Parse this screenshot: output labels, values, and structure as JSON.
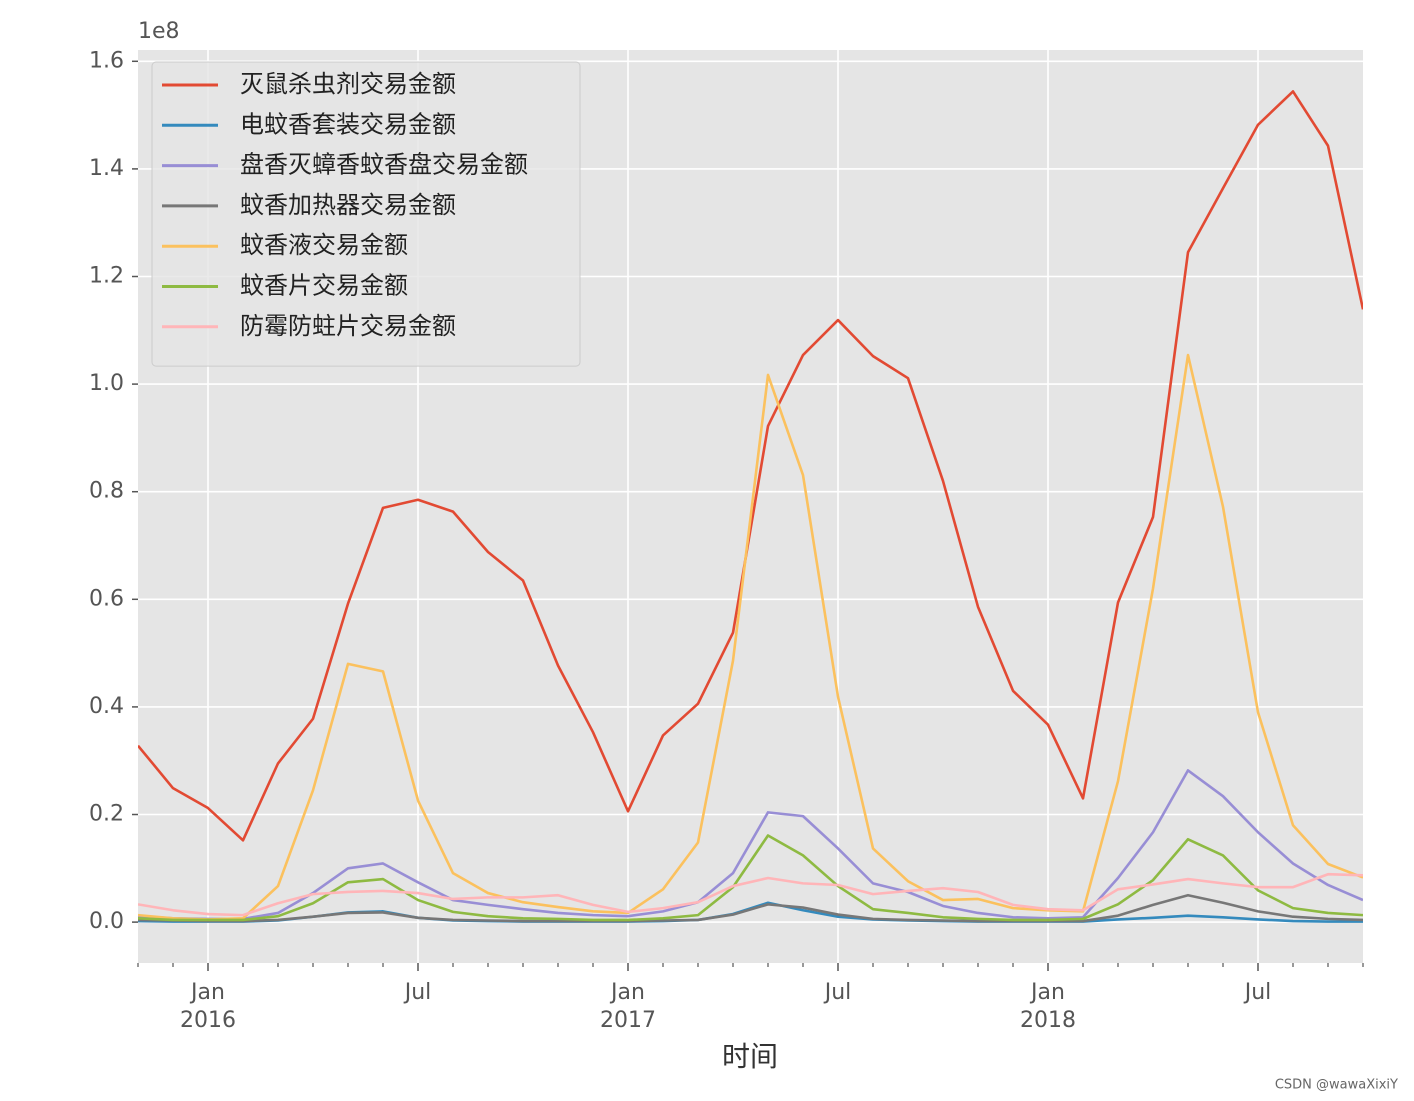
{
  "chart_data": {
    "type": "line",
    "xlabel": "时间",
    "offset_label": "1e8",
    "watermark": "CSDN @wawaXixiY",
    "x": [
      "2015-11",
      "2015-12",
      "2016-01",
      "2016-02",
      "2016-03",
      "2016-04",
      "2016-05",
      "2016-06",
      "2016-07",
      "2016-08",
      "2016-09",
      "2016-10",
      "2016-11",
      "2016-12",
      "2017-01",
      "2017-02",
      "2017-03",
      "2017-04",
      "2017-05",
      "2017-06",
      "2017-07",
      "2017-08",
      "2017-09",
      "2017-10",
      "2017-11",
      "2017-12",
      "2018-01",
      "2018-02",
      "2018-03",
      "2018-04",
      "2018-05",
      "2018-06",
      "2018-07",
      "2018-08",
      "2018-09",
      "2018-10"
    ],
    "xlim": [
      "2015-11",
      "2018-10"
    ],
    "xticks": [
      {
        "value": "2016-01",
        "label": "Jan",
        "sublabel": "2016"
      },
      {
        "value": "2016-07",
        "label": "Jul"
      },
      {
        "value": "2017-01",
        "label": "Jan",
        "sublabel": "2017"
      },
      {
        "value": "2017-07",
        "label": "Jul"
      },
      {
        "value": "2018-01",
        "label": "Jan",
        "sublabel": "2018"
      },
      {
        "value": "2018-07",
        "label": "Jul"
      }
    ],
    "xminor_ticks": [
      "2015-11",
      "2015-12",
      "2016-02",
      "2016-03",
      "2016-04",
      "2016-05",
      "2016-06",
      "2016-08",
      "2016-09",
      "2016-10",
      "2016-11",
      "2016-12",
      "2017-02",
      "2017-03",
      "2017-04",
      "2017-05",
      "2017-06",
      "2017-08",
      "2017-09",
      "2017-10",
      "2017-11",
      "2017-12",
      "2018-02",
      "2018-03",
      "2018-04",
      "2018-05",
      "2018-06",
      "2018-08",
      "2018-09",
      "2018-10"
    ],
    "ylim": [
      -0.076,
      1.621
    ],
    "yticks": [
      {
        "value": 0,
        "label": "0.0"
      },
      {
        "value": 0.2,
        "label": "0.2"
      },
      {
        "value": 0.4,
        "label": "0.4"
      },
      {
        "value": 0.6,
        "label": "0.6"
      },
      {
        "value": 0.8,
        "label": "0.8"
      },
      {
        "value": 1,
        "label": "1.0"
      },
      {
        "value": 1.2,
        "label": "1.2"
      },
      {
        "value": 1.4,
        "label": "1.4"
      },
      {
        "value": 1.6,
        "label": "1.6"
      }
    ],
    "grid": true,
    "legend": "upper left",
    "background": "#e5e5e5",
    "series": [
      {
        "name": "灭鼠杀虫剂交易金额",
        "color": "#e24a33",
        "values": [
          0.328,
          0.249,
          0.212,
          0.152,
          0.295,
          0.378,
          0.592,
          0.77,
          0.785,
          0.763,
          0.688,
          0.635,
          0.477,
          0.353,
          0.206,
          0.347,
          0.406,
          0.538,
          0.922,
          1.054,
          1.119,
          1.052,
          1.011,
          0.82,
          0.586,
          0.43,
          0.367,
          0.23,
          0.594,
          0.753,
          1.245,
          1.364,
          1.482,
          1.544,
          1.443,
          1.139
        ]
      },
      {
        "name": "电蚊香套装交易金额",
        "color": "#348abd",
        "values": [
          0.002,
          0.001,
          0.001,
          0.001,
          0.003,
          0.01,
          0.018,
          0.02,
          0.008,
          0.003,
          0.002,
          0.001,
          0.001,
          0.001,
          0.001,
          0.002,
          0.004,
          0.015,
          0.036,
          0.022,
          0.01,
          0.005,
          0.003,
          0.002,
          0.001,
          0.001,
          0.001,
          0.001,
          0.005,
          0.008,
          0.012,
          0.009,
          0.005,
          0.002,
          0.001,
          0.001
        ]
      },
      {
        "name": "盘香灭蟑香蚊香盘交易金额",
        "color": "#988ed5",
        "values": [
          0.011,
          0.007,
          0.006,
          0.006,
          0.017,
          0.054,
          0.1,
          0.109,
          0.074,
          0.041,
          0.032,
          0.024,
          0.017,
          0.013,
          0.011,
          0.02,
          0.037,
          0.091,
          0.204,
          0.197,
          0.137,
          0.072,
          0.056,
          0.03,
          0.017,
          0.009,
          0.007,
          0.009,
          0.082,
          0.167,
          0.282,
          0.234,
          0.167,
          0.109,
          0.069,
          0.041
        ]
      },
      {
        "name": "蚊香加热器交易金额",
        "color": "#777777",
        "values": [
          0.004,
          0.003,
          0.002,
          0.002,
          0.004,
          0.01,
          0.017,
          0.018,
          0.008,
          0.004,
          0.003,
          0.002,
          0.002,
          0.002,
          0.002,
          0.003,
          0.004,
          0.014,
          0.033,
          0.027,
          0.014,
          0.006,
          0.004,
          0.003,
          0.002,
          0.002,
          0.002,
          0.002,
          0.012,
          0.032,
          0.05,
          0.036,
          0.02,
          0.01,
          0.006,
          0.004
        ]
      },
      {
        "name": "蚊香液交易金额",
        "color": "#fbc15e",
        "values": [
          0.013,
          0.007,
          0.005,
          0.007,
          0.067,
          0.245,
          0.48,
          0.466,
          0.226,
          0.091,
          0.054,
          0.037,
          0.028,
          0.02,
          0.017,
          0.061,
          0.148,
          0.486,
          1.017,
          0.831,
          0.419,
          0.137,
          0.076,
          0.041,
          0.043,
          0.026,
          0.022,
          0.02,
          0.262,
          0.62,
          1.054,
          0.772,
          0.39,
          0.18,
          0.108,
          0.083
        ]
      },
      {
        "name": "蚊香片交易金额",
        "color": "#8eba42",
        "values": [
          0.007,
          0.004,
          0.004,
          0.004,
          0.011,
          0.035,
          0.074,
          0.08,
          0.041,
          0.019,
          0.011,
          0.007,
          0.006,
          0.004,
          0.004,
          0.007,
          0.013,
          0.065,
          0.161,
          0.124,
          0.067,
          0.024,
          0.017,
          0.009,
          0.006,
          0.004,
          0.004,
          0.006,
          0.033,
          0.078,
          0.154,
          0.124,
          0.059,
          0.026,
          0.017,
          0.013
        ]
      },
      {
        "name": "防霉防蛀片交易金额",
        "color": "#ffb5b8",
        "values": [
          0.033,
          0.022,
          0.015,
          0.013,
          0.035,
          0.052,
          0.056,
          0.058,
          0.054,
          0.043,
          0.046,
          0.046,
          0.05,
          0.032,
          0.019,
          0.026,
          0.037,
          0.067,
          0.082,
          0.072,
          0.069,
          0.052,
          0.058,
          0.063,
          0.056,
          0.032,
          0.024,
          0.022,
          0.061,
          0.07,
          0.08,
          0.072,
          0.065,
          0.065,
          0.089,
          0.087
        ]
      }
    ]
  }
}
